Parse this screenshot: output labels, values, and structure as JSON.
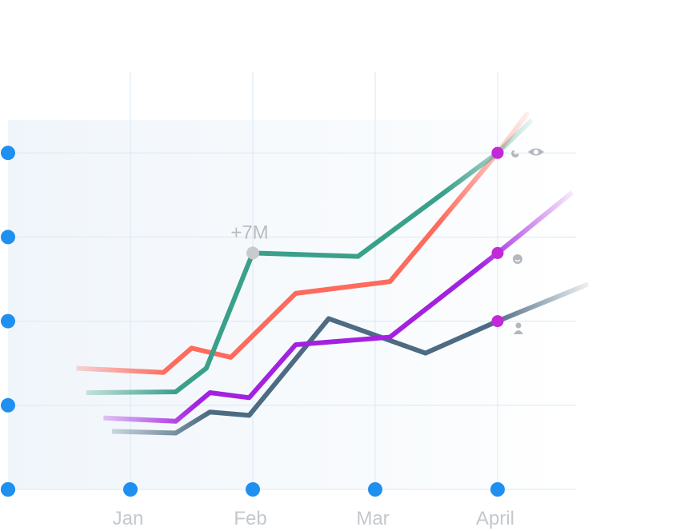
{
  "chart_data": {
    "type": "line",
    "annotation": "+7M",
    "xlim": [
      0,
      5.5
    ],
    "ylim": [
      0,
      5
    ],
    "xticks": [
      {
        "value": 1,
        "label": "Jan"
      },
      {
        "value": 2,
        "label": "Feb"
      },
      {
        "value": 3,
        "label": "Mar"
      },
      {
        "value": 4,
        "label": "April"
      }
    ],
    "yticks": [
      0,
      1,
      2,
      3,
      4
    ],
    "grid": true,
    "series": [
      {
        "color": "#3aa08a",
        "x": [
          0.64,
          1.37,
          1.62,
          2.0,
          2.86,
          4.0,
          4.28
        ],
        "values": [
          1.15,
          1.16,
          1.44,
          2.81,
          2.77,
          4.0,
          4.39
        ]
      },
      {
        "color": "#ff6a5c",
        "x": [
          0.56,
          1.27,
          1.5,
          1.82,
          2.35,
          3.12,
          4.0,
          4.25
        ],
        "values": [
          1.44,
          1.39,
          1.68,
          1.57,
          2.33,
          2.47,
          4.0,
          4.48
        ]
      },
      {
        "color": "#a322e0",
        "x": [
          0.78,
          1.37,
          1.65,
          1.97,
          2.35,
          3.12,
          4.0,
          4.61
        ],
        "values": [
          0.85,
          0.81,
          1.15,
          1.09,
          1.72,
          1.81,
          2.81,
          3.53
        ]
      },
      {
        "color": "#4d6b82",
        "x": [
          0.85,
          1.37,
          1.65,
          1.97,
          2.62,
          3.41,
          4.0,
          4.74
        ],
        "values": [
          0.69,
          0.67,
          0.92,
          0.88,
          2.03,
          1.62,
          2.0,
          2.44
        ]
      }
    ]
  }
}
